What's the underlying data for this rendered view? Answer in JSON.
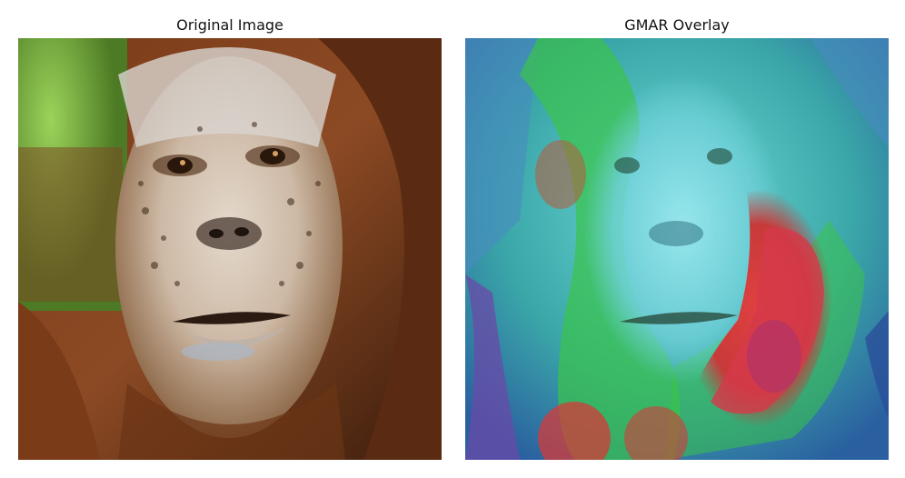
{
  "panels": [
    {
      "title": "Original Image"
    },
    {
      "title": "GMAR Overlay"
    }
  ],
  "colors": {
    "background": "#ffffff",
    "fur_dark": "#3b1f10",
    "fur_mid": "#8a4a22",
    "face_skin": "#d8cbbd",
    "foliage": "#6fa33a",
    "heat_high": "#d43a3a",
    "heat_mid": "#2fbf4a",
    "heat_low": "#3fb8c8",
    "heat_cool": "#2f5fa8"
  }
}
